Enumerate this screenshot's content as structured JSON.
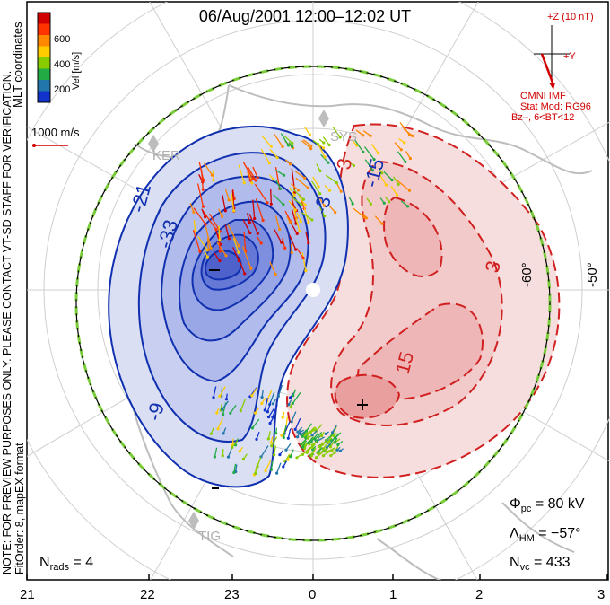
{
  "title": "06/Aug/2001  12:00–12:02  UT",
  "side_note": "NOTE: FOR PREVIEW PURPOSES ONLY. PLEASE CONTACT VT-SD STAFF FOR VERIFICATION.",
  "side_note2": "FitOrder: 8, mapEX format",
  "mlt_coords_label": "MLT coordinates",
  "colorbar": {
    "label": "Vel [m/s]",
    "ticks": [
      "600",
      "400",
      "200"
    ],
    "colors": [
      "#d00000",
      "#ff3300",
      "#ff8800",
      "#ffcc00",
      "#88cc00",
      "#22aa44",
      "#2277aa",
      "#1133cc"
    ]
  },
  "scale_vector_label": "1000 m/s",
  "imf": {
    "z_label": "+Z (10 nT)",
    "y_label": "+Y",
    "source_label": "OMNI IMF",
    "stat_mod": "Stat Mod: RG96",
    "bz_range": "Bz–, 6<BT<12"
  },
  "stations": [
    "KER",
    "SYS",
    "TIG"
  ],
  "latitude_labels": [
    "-60°",
    "-50°"
  ],
  "contour_labels": [
    "-21",
    "-33",
    "-9",
    "-3",
    "-15",
    "3",
    "15"
  ],
  "stats": {
    "phi_pc_symbol": "Φ",
    "phi_pc_sub": "pc",
    "phi_pc_value": "=  80 kV",
    "lambda_symbol": "Λ",
    "lambda_sub": "HM",
    "lambda_value": "=  −57°",
    "nvc_symbol": "N",
    "nvc_sub": "vc",
    "nvc_value": "=  433",
    "nrads_symbol": "N",
    "nrads_sub": "rads",
    "nrads_value": "=  4"
  },
  "mlt_ticks": [
    "21",
    "22",
    "23",
    "0",
    "1",
    "2",
    "3"
  ]
}
